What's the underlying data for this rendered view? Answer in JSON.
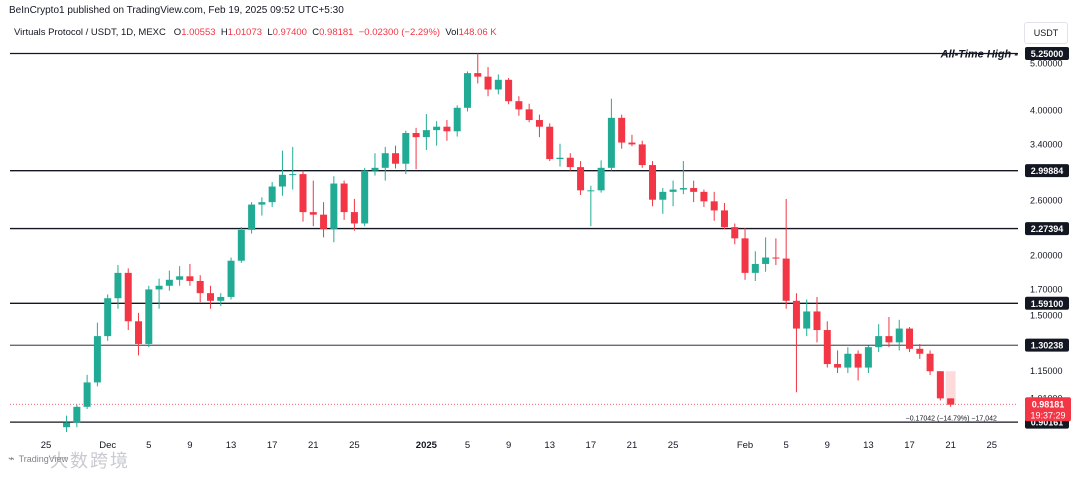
{
  "publisher_line": "BeInCrypto1 published on TradingView.com, Feb 19, 2025 09:52 UTC+5:30",
  "legend": {
    "symbol": "Virtuals Protocol / USDT, 1D, MEXC",
    "o_label": "O",
    "o_value": "1.00553",
    "h_label": "H",
    "h_value": "1.01073",
    "l_label": "L",
    "l_value": "0.97400",
    "c_label": "C",
    "c_value": "0.98181",
    "change": "−0.02300 (−2.29%)",
    "vol_label": "Vol",
    "vol_value": "148.06 K"
  },
  "currency_button": "USDT",
  "watermark": {
    "brand": "TradingView",
    "cn_text": "大数跨境"
  },
  "colors": {
    "up": "#22ab94",
    "down": "#f23645",
    "line": "#131722",
    "grid_text": "#131722",
    "price_tag": "#f23645"
  },
  "chart_data": {
    "type": "candlestick",
    "title": "Virtuals Protocol / USDT, 1D, MEXC",
    "log_scale": true,
    "ylim": [
      0.86,
      5.6
    ],
    "axis_ticks": [
      "5.00000",
      "4.00000",
      "3.40000",
      "2.60000",
      "2.00000",
      "1.70000",
      "1.50000",
      "1.15000",
      "1.01000"
    ],
    "x_ticks": [
      {
        "label": "25",
        "index": 0,
        "bold": false
      },
      {
        "label": "Dec",
        "index": 6,
        "bold": false
      },
      {
        "label": "5",
        "index": 10,
        "bold": false
      },
      {
        "label": "9",
        "index": 14,
        "bold": false
      },
      {
        "label": "13",
        "index": 18,
        "bold": false
      },
      {
        "label": "17",
        "index": 22,
        "bold": false
      },
      {
        "label": "21",
        "index": 26,
        "bold": false
      },
      {
        "label": "25",
        "index": 30,
        "bold": false
      },
      {
        "label": "2025",
        "index": 37,
        "bold": true
      },
      {
        "label": "5",
        "index": 41,
        "bold": false
      },
      {
        "label": "9",
        "index": 45,
        "bold": false
      },
      {
        "label": "13",
        "index": 49,
        "bold": false
      },
      {
        "label": "17",
        "index": 53,
        "bold": false
      },
      {
        "label": "21",
        "index": 57,
        "bold": false
      },
      {
        "label": "25",
        "index": 61,
        "bold": false
      },
      {
        "label": "Feb",
        "index": 68,
        "bold": false
      },
      {
        "label": "5",
        "index": 72,
        "bold": false
      },
      {
        "label": "9",
        "index": 76,
        "bold": false
      },
      {
        "label": "13",
        "index": 80,
        "bold": false
      },
      {
        "label": "17",
        "index": 84,
        "bold": false
      },
      {
        "label": "21",
        "index": 88,
        "bold": false
      },
      {
        "label": "25",
        "index": 92,
        "bold": false
      }
    ],
    "levels": [
      {
        "label": "5.25000",
        "value": 5.25,
        "annotation": "All-Time High -"
      },
      {
        "label": "2.99884",
        "value": 2.99884,
        "annotation": ""
      },
      {
        "label": "2.27394",
        "value": 2.27394,
        "annotation": ""
      },
      {
        "label": "1.59100",
        "value": 1.591,
        "annotation": ""
      },
      {
        "label": "1.30238",
        "value": 1.30238,
        "annotation": ""
      },
      {
        "label": "0.90161",
        "value": 0.90161,
        "annotation": ""
      }
    ],
    "current_price": {
      "label": "0.98181",
      "countdown": "19:37:29",
      "value": 0.98181
    },
    "measure_label": "−0.17042 (−14.79%) −17,042",
    "candles": [
      {
        "i": 2,
        "o": 0.88,
        "h": 0.93,
        "l": 0.86,
        "c": 0.9
      },
      {
        "i": 3,
        "o": 0.9,
        "h": 0.98,
        "l": 0.88,
        "c": 0.97
      },
      {
        "i": 4,
        "o": 0.97,
        "h": 1.13,
        "l": 0.96,
        "c": 1.09
      },
      {
        "i": 5,
        "o": 1.09,
        "h": 1.45,
        "l": 1.07,
        "c": 1.36
      },
      {
        "i": 6,
        "o": 1.36,
        "h": 1.66,
        "l": 1.33,
        "c": 1.63
      },
      {
        "i": 7,
        "o": 1.63,
        "h": 1.91,
        "l": 1.55,
        "c": 1.84
      },
      {
        "i": 8,
        "o": 1.84,
        "h": 1.88,
        "l": 1.4,
        "c": 1.46
      },
      {
        "i": 9,
        "o": 1.46,
        "h": 1.52,
        "l": 1.24,
        "c": 1.31
      },
      {
        "i": 10,
        "o": 1.31,
        "h": 1.73,
        "l": 1.29,
        "c": 1.7
      },
      {
        "i": 11,
        "o": 1.7,
        "h": 1.79,
        "l": 1.55,
        "c": 1.73
      },
      {
        "i": 12,
        "o": 1.73,
        "h": 1.86,
        "l": 1.69,
        "c": 1.78
      },
      {
        "i": 13,
        "o": 1.78,
        "h": 1.9,
        "l": 1.73,
        "c": 1.81
      },
      {
        "i": 14,
        "o": 1.81,
        "h": 1.92,
        "l": 1.73,
        "c": 1.77
      },
      {
        "i": 15,
        "o": 1.77,
        "h": 1.82,
        "l": 1.6,
        "c": 1.67
      },
      {
        "i": 16,
        "o": 1.67,
        "h": 1.73,
        "l": 1.55,
        "c": 1.61
      },
      {
        "i": 17,
        "o": 1.61,
        "h": 1.67,
        "l": 1.57,
        "c": 1.64
      },
      {
        "i": 18,
        "o": 1.64,
        "h": 1.98,
        "l": 1.62,
        "c": 1.95
      },
      {
        "i": 19,
        "o": 1.95,
        "h": 2.29,
        "l": 1.93,
        "c": 2.26
      },
      {
        "i": 20,
        "o": 2.26,
        "h": 2.58,
        "l": 2.22,
        "c": 2.55
      },
      {
        "i": 21,
        "o": 2.55,
        "h": 2.64,
        "l": 2.42,
        "c": 2.58
      },
      {
        "i": 22,
        "o": 2.58,
        "h": 2.84,
        "l": 2.52,
        "c": 2.78
      },
      {
        "i": 23,
        "o": 2.78,
        "h": 3.3,
        "l": 2.66,
        "c": 2.94
      },
      {
        "i": 24,
        "o": 2.94,
        "h": 3.36,
        "l": 2.74,
        "c": 2.95
      },
      {
        "i": 25,
        "o": 2.95,
        "h": 3.0,
        "l": 2.35,
        "c": 2.46
      },
      {
        "i": 26,
        "o": 2.46,
        "h": 2.86,
        "l": 2.3,
        "c": 2.43
      },
      {
        "i": 27,
        "o": 2.43,
        "h": 2.58,
        "l": 2.18,
        "c": 2.27
      },
      {
        "i": 28,
        "o": 2.27,
        "h": 2.92,
        "l": 2.13,
        "c": 2.82
      },
      {
        "i": 29,
        "o": 2.82,
        "h": 2.86,
        "l": 2.37,
        "c": 2.46
      },
      {
        "i": 30,
        "o": 2.46,
        "h": 2.62,
        "l": 2.25,
        "c": 2.33
      },
      {
        "i": 31,
        "o": 2.33,
        "h": 3.04,
        "l": 2.3,
        "c": 3.0
      },
      {
        "i": 32,
        "o": 3.0,
        "h": 3.26,
        "l": 2.93,
        "c": 3.04
      },
      {
        "i": 33,
        "o": 3.04,
        "h": 3.36,
        "l": 2.86,
        "c": 3.26
      },
      {
        "i": 34,
        "o": 3.26,
        "h": 3.38,
        "l": 3.03,
        "c": 3.1
      },
      {
        "i": 35,
        "o": 3.1,
        "h": 3.63,
        "l": 2.95,
        "c": 3.59
      },
      {
        "i": 36,
        "o": 3.59,
        "h": 3.68,
        "l": 3.02,
        "c": 3.52
      },
      {
        "i": 37,
        "o": 3.52,
        "h": 3.93,
        "l": 3.31,
        "c": 3.64
      },
      {
        "i": 38,
        "o": 3.64,
        "h": 3.8,
        "l": 3.38,
        "c": 3.7
      },
      {
        "i": 39,
        "o": 3.7,
        "h": 3.82,
        "l": 3.46,
        "c": 3.62
      },
      {
        "i": 40,
        "o": 3.62,
        "h": 4.1,
        "l": 3.53,
        "c": 4.05
      },
      {
        "i": 41,
        "o": 4.05,
        "h": 4.82,
        "l": 3.98,
        "c": 4.78
      },
      {
        "i": 42,
        "o": 4.78,
        "h": 5.25,
        "l": 4.55,
        "c": 4.7
      },
      {
        "i": 43,
        "o": 4.7,
        "h": 4.92,
        "l": 4.28,
        "c": 4.42
      },
      {
        "i": 44,
        "o": 4.42,
        "h": 4.75,
        "l": 4.32,
        "c": 4.63
      },
      {
        "i": 45,
        "o": 4.63,
        "h": 4.67,
        "l": 4.12,
        "c": 4.18
      },
      {
        "i": 46,
        "o": 4.18,
        "h": 4.28,
        "l": 3.9,
        "c": 4.02
      },
      {
        "i": 47,
        "o": 4.02,
        "h": 4.13,
        "l": 3.78,
        "c": 3.82
      },
      {
        "i": 48,
        "o": 3.82,
        "h": 3.92,
        "l": 3.52,
        "c": 3.7
      },
      {
        "i": 49,
        "o": 3.7,
        "h": 3.76,
        "l": 3.14,
        "c": 3.17
      },
      {
        "i": 50,
        "o": 3.17,
        "h": 3.41,
        "l": 3.06,
        "c": 3.19
      },
      {
        "i": 51,
        "o": 3.19,
        "h": 3.26,
        "l": 3.0,
        "c": 3.05
      },
      {
        "i": 52,
        "o": 3.05,
        "h": 3.14,
        "l": 2.67,
        "c": 2.73
      },
      {
        "i": 53,
        "o": 2.73,
        "h": 2.79,
        "l": 2.3,
        "c": 2.73
      },
      {
        "i": 54,
        "o": 2.73,
        "h": 3.15,
        "l": 2.7,
        "c": 3.04
      },
      {
        "i": 55,
        "o": 3.04,
        "h": 4.23,
        "l": 3.0,
        "c": 3.86
      },
      {
        "i": 56,
        "o": 3.86,
        "h": 3.92,
        "l": 3.33,
        "c": 3.43
      },
      {
        "i": 57,
        "o": 3.43,
        "h": 3.56,
        "l": 3.37,
        "c": 3.4
      },
      {
        "i": 58,
        "o": 3.4,
        "h": 3.46,
        "l": 3.04,
        "c": 3.08
      },
      {
        "i": 59,
        "o": 3.08,
        "h": 3.14,
        "l": 2.53,
        "c": 2.61
      },
      {
        "i": 60,
        "o": 2.61,
        "h": 2.76,
        "l": 2.44,
        "c": 2.71
      },
      {
        "i": 61,
        "o": 2.71,
        "h": 2.86,
        "l": 2.53,
        "c": 2.74
      },
      {
        "i": 62,
        "o": 2.74,
        "h": 3.14,
        "l": 2.68,
        "c": 2.76
      },
      {
        "i": 63,
        "o": 2.76,
        "h": 2.86,
        "l": 2.58,
        "c": 2.71
      },
      {
        "i": 64,
        "o": 2.71,
        "h": 2.74,
        "l": 2.52,
        "c": 2.59
      },
      {
        "i": 65,
        "o": 2.59,
        "h": 2.71,
        "l": 2.36,
        "c": 2.48
      },
      {
        "i": 66,
        "o": 2.48,
        "h": 2.57,
        "l": 2.27,
        "c": 2.29
      },
      {
        "i": 67,
        "o": 2.29,
        "h": 2.33,
        "l": 2.11,
        "c": 2.17
      },
      {
        "i": 68,
        "o": 2.17,
        "h": 2.28,
        "l": 1.78,
        "c": 1.84
      },
      {
        "i": 69,
        "o": 1.84,
        "h": 2.04,
        "l": 1.77,
        "c": 1.92
      },
      {
        "i": 70,
        "o": 1.92,
        "h": 2.18,
        "l": 1.85,
        "c": 1.98
      },
      {
        "i": 71,
        "o": 1.98,
        "h": 2.17,
        "l": 1.91,
        "c": 1.97
      },
      {
        "i": 72,
        "o": 1.97,
        "h": 2.62,
        "l": 1.55,
        "c": 1.61
      },
      {
        "i": 73,
        "o": 1.61,
        "h": 1.67,
        "l": 1.04,
        "c": 1.41
      },
      {
        "i": 74,
        "o": 1.41,
        "h": 1.62,
        "l": 1.36,
        "c": 1.53
      },
      {
        "i": 75,
        "o": 1.53,
        "h": 1.64,
        "l": 1.32,
        "c": 1.4
      },
      {
        "i": 76,
        "o": 1.4,
        "h": 1.46,
        "l": 1.17,
        "c": 1.19
      },
      {
        "i": 77,
        "o": 1.19,
        "h": 1.27,
        "l": 1.14,
        "c": 1.17
      },
      {
        "i": 78,
        "o": 1.17,
        "h": 1.29,
        "l": 1.14,
        "c": 1.25
      },
      {
        "i": 79,
        "o": 1.25,
        "h": 1.27,
        "l": 1.1,
        "c": 1.17
      },
      {
        "i": 80,
        "o": 1.17,
        "h": 1.3,
        "l": 1.14,
        "c": 1.29
      },
      {
        "i": 81,
        "o": 1.29,
        "h": 1.44,
        "l": 1.26,
        "c": 1.36
      },
      {
        "i": 82,
        "o": 1.36,
        "h": 1.49,
        "l": 1.29,
        "c": 1.32
      },
      {
        "i": 83,
        "o": 1.32,
        "h": 1.47,
        "l": 1.27,
        "c": 1.41
      },
      {
        "i": 84,
        "o": 1.41,
        "h": 1.42,
        "l": 1.26,
        "c": 1.28
      },
      {
        "i": 85,
        "o": 1.28,
        "h": 1.31,
        "l": 1.22,
        "c": 1.25
      },
      {
        "i": 86,
        "o": 1.25,
        "h": 1.27,
        "l": 1.13,
        "c": 1.15
      },
      {
        "i": 87,
        "o": 1.15,
        "h": 1.15,
        "l": 1.0,
        "c": 1.01
      },
      {
        "i": 88,
        "o": 1.01,
        "h": 1.01,
        "l": 0.97,
        "c": 0.98
      }
    ]
  }
}
